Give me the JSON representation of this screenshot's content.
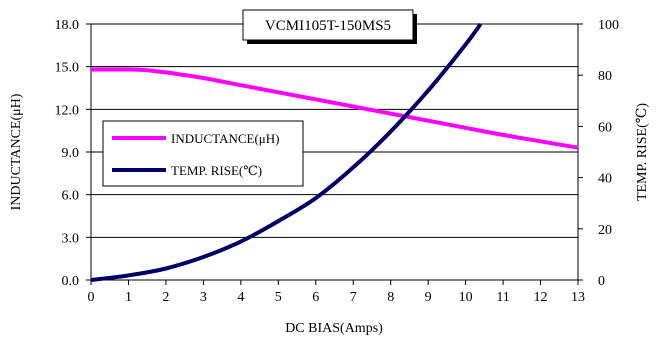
{
  "chart_data": {
    "type": "line",
    "title": "VCMI105T-150MS5",
    "xlabel": "DC BIAS(Amps)",
    "ylabel_left": "INDUCTANCE(μH)",
    "ylabel_right": "TEMP. RISE(℃)",
    "xlim": [
      0,
      13
    ],
    "ylim_left": [
      0,
      18
    ],
    "ylim_right": [
      0,
      100
    ],
    "x_ticks": [
      "0",
      "1",
      "2",
      "3",
      "4",
      "5",
      "6",
      "7",
      "8",
      "9",
      "10",
      "11",
      "12",
      "13"
    ],
    "y_ticks_left": [
      "0.0",
      "3.0",
      "6.0",
      "9.0",
      "12.0",
      "15.0",
      "18.0"
    ],
    "y_ticks_right": [
      "0",
      "20",
      "40",
      "60",
      "80",
      "100"
    ],
    "grid": "horizontal",
    "legend_position": "left-middle",
    "series": [
      {
        "name": "INDUCTANCE(μH)",
        "axis": "left",
        "color": "#ff00ff",
        "x": [
          0,
          0.5,
          1,
          1.5,
          2,
          3,
          4,
          5,
          6,
          7,
          8,
          9,
          10,
          11,
          12,
          13
        ],
        "y": [
          14.8,
          14.8,
          14.8,
          14.75,
          14.6,
          14.2,
          13.7,
          13.2,
          12.7,
          12.2,
          11.7,
          11.2,
          10.7,
          10.2,
          9.75,
          9.3
        ]
      },
      {
        "name": "TEMP. RISE(℃)",
        "axis": "right",
        "color": "#000066",
        "x": [
          0,
          1,
          2,
          3,
          4,
          5,
          6,
          7,
          8,
          9,
          10,
          10.4
        ],
        "y": [
          0,
          1.8,
          4.5,
          9,
          15,
          23,
          32,
          44,
          58,
          74,
          92,
          100
        ]
      }
    ]
  }
}
